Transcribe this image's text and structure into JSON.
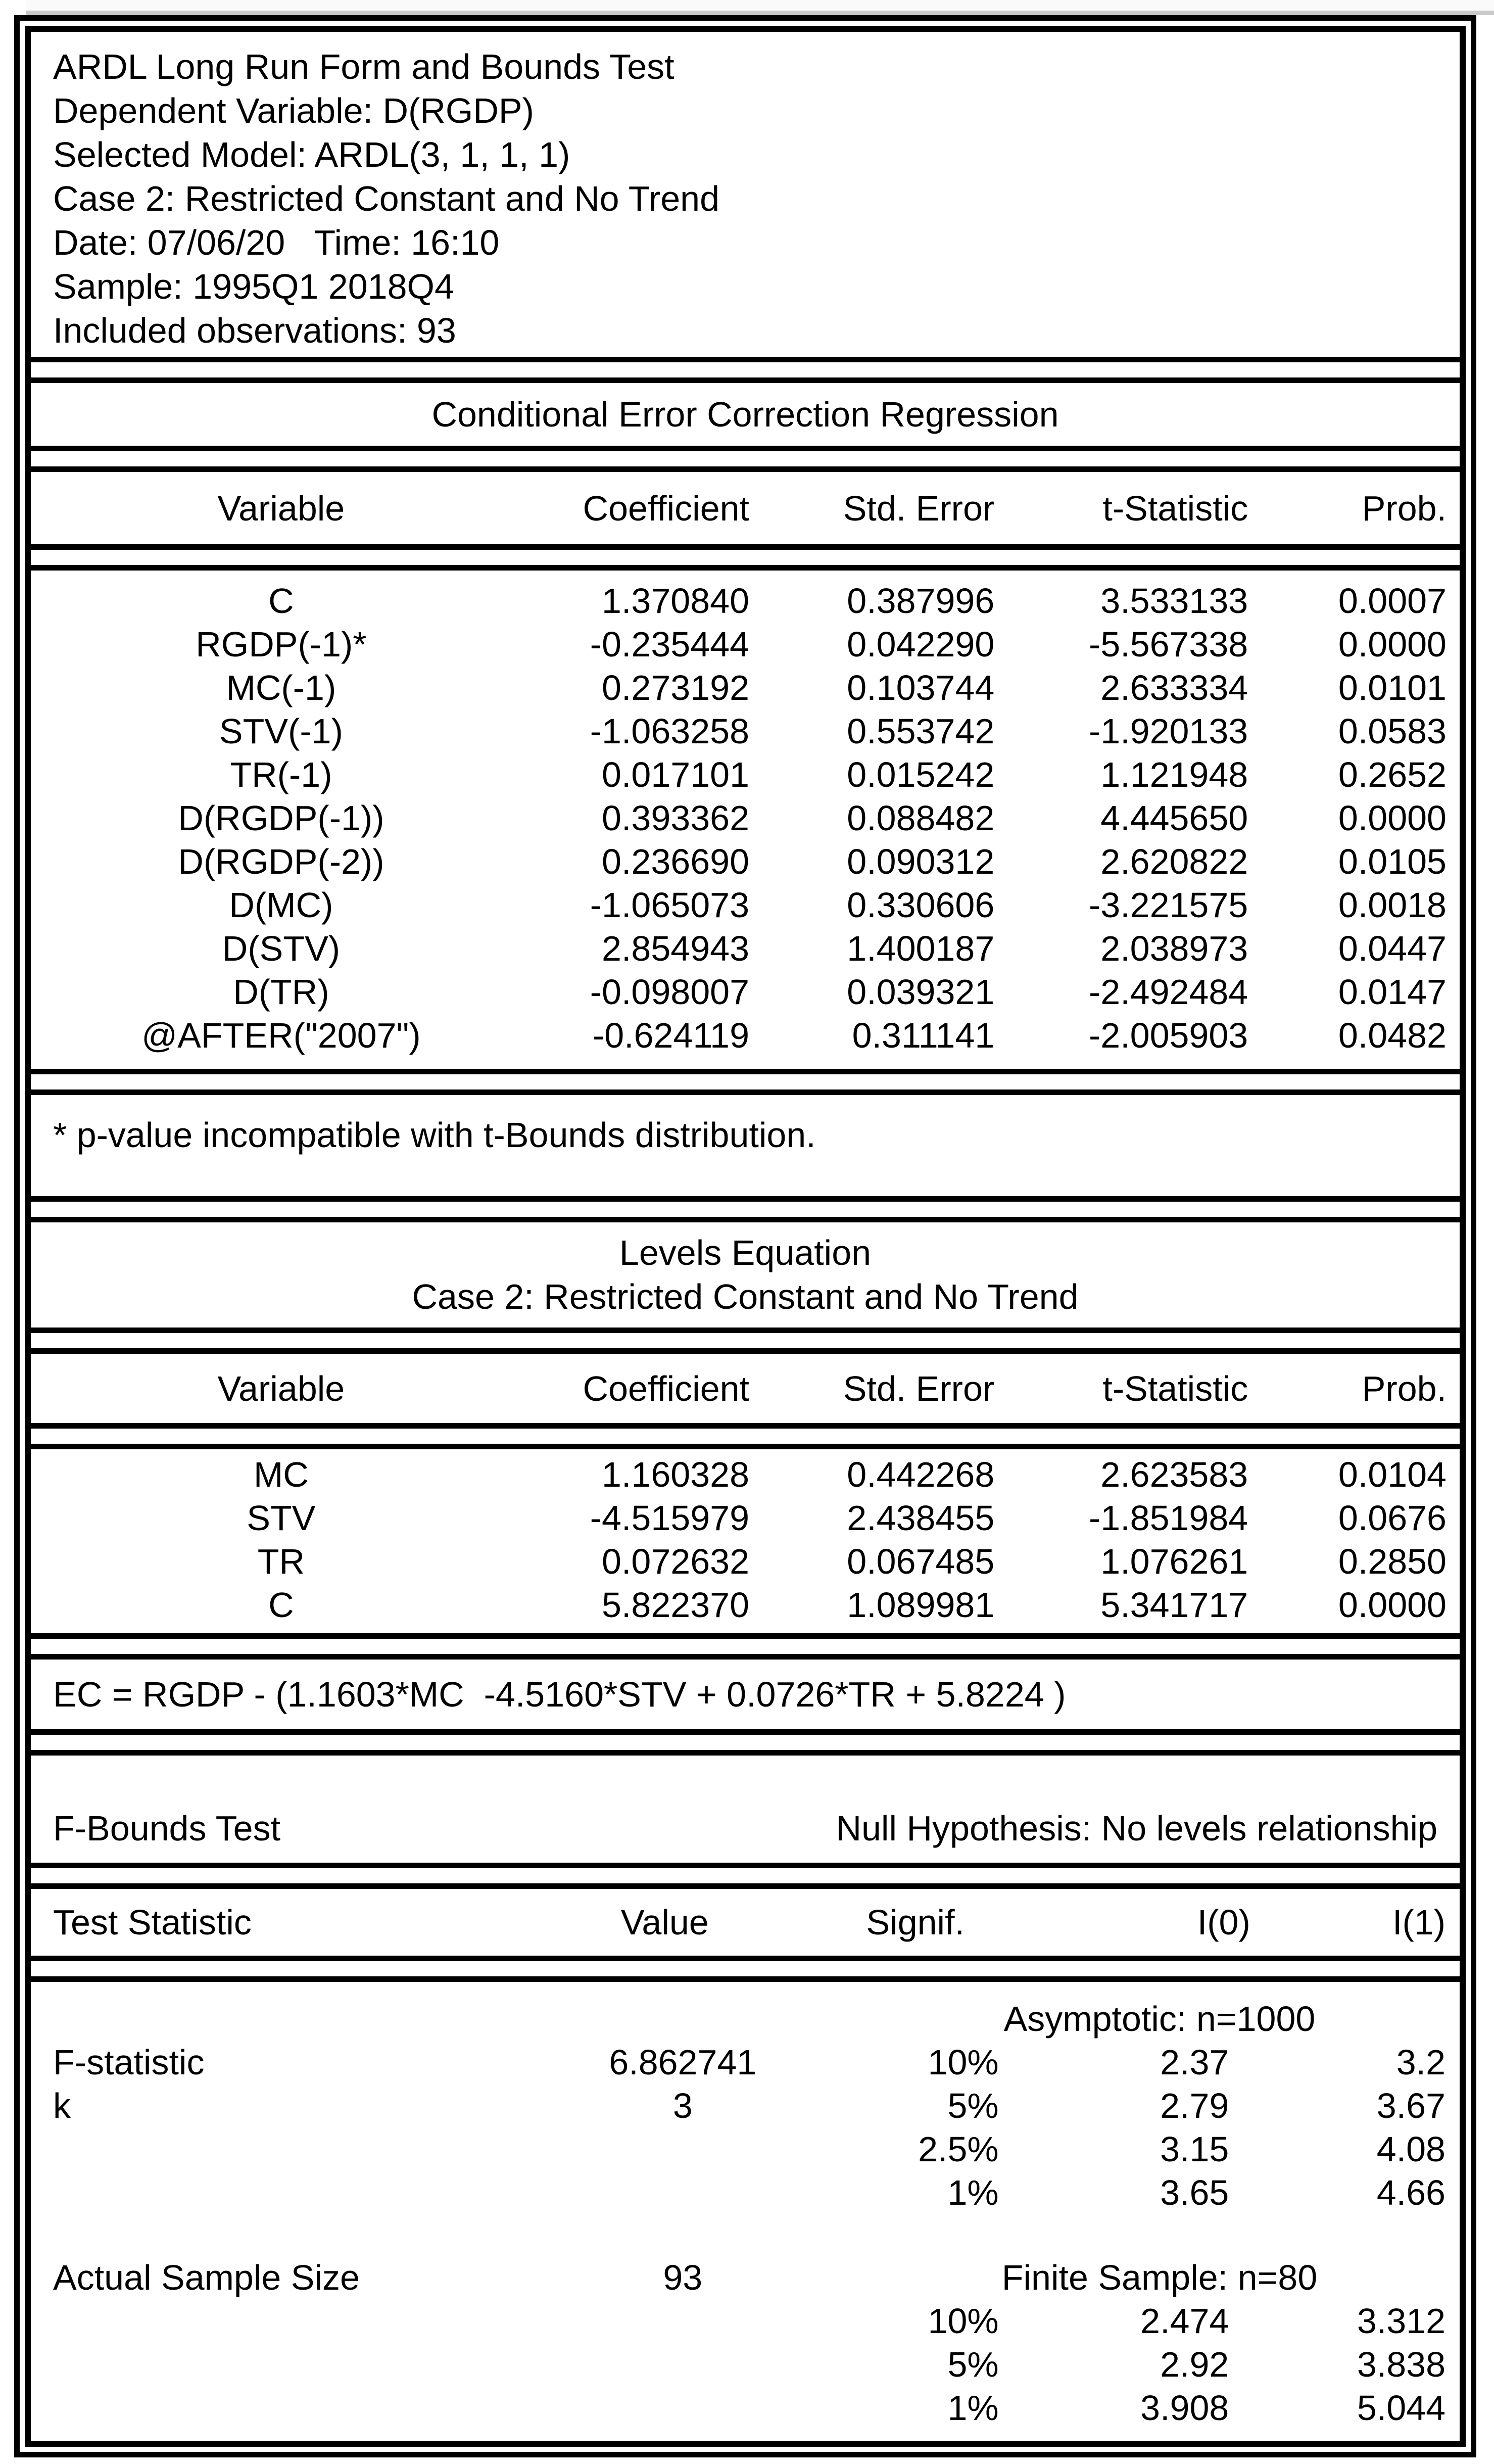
{
  "summary": {
    "lines": [
      "ARDL Long Run Form and Bounds Test",
      "Dependent Variable: D(RGDP)",
      "Selected Model: ARDL(3, 1, 1, 1)",
      "Case 2: Restricted Constant and No Trend",
      "Date: 07/06/20   Time: 16:10",
      "Sample: 1995Q1 2018Q4",
      "Included observations: 93"
    ]
  },
  "cec": {
    "title": "Conditional Error Correction Regression",
    "columns": [
      "Variable",
      "Coefficient",
      "Std. Error",
      "t-Statistic",
      "Prob."
    ],
    "rows": [
      [
        "C",
        "1.370840",
        "0.387996",
        "3.533133",
        "0.0007"
      ],
      [
        "RGDP(-1)*",
        "-0.235444",
        "0.042290",
        "-5.567338",
        "0.0000"
      ],
      [
        "MC(-1)",
        "0.273192",
        "0.103744",
        "2.633334",
        "0.0101"
      ],
      [
        "STV(-1)",
        "-1.063258",
        "0.553742",
        "-1.920133",
        "0.0583"
      ],
      [
        "TR(-1)",
        "0.017101",
        "0.015242",
        "1.121948",
        "0.2652"
      ],
      [
        "D(RGDP(-1))",
        "0.393362",
        "0.088482",
        "4.445650",
        "0.0000"
      ],
      [
        "D(RGDP(-2))",
        "0.236690",
        "0.090312",
        "2.620822",
        "0.0105"
      ],
      [
        "D(MC)",
        "-1.065073",
        "0.330606",
        "-3.221575",
        "0.0018"
      ],
      [
        "D(STV)",
        "2.854943",
        "1.400187",
        "2.038973",
        "0.0447"
      ],
      [
        "D(TR)",
        "-0.098007",
        "0.039321",
        "-2.492484",
        "0.0147"
      ],
      [
        "@AFTER(\"2007\")",
        "-0.624119",
        "0.311141",
        "-2.005903",
        "0.0482"
      ]
    ],
    "footnote": "* p-value incompatible with t-Bounds distribution."
  },
  "levels": {
    "title_line1": "Levels Equation",
    "title_line2": "Case 2: Restricted Constant and No Trend",
    "columns": [
      "Variable",
      "Coefficient",
      "Std. Error",
      "t-Statistic",
      "Prob."
    ],
    "rows": [
      [
        "MC",
        "1.160328",
        "0.442268",
        "2.623583",
        "0.0104"
      ],
      [
        "STV",
        "-4.515979",
        "2.438455",
        "-1.851984",
        "0.0676"
      ],
      [
        "TR",
        "0.072632",
        "0.067485",
        "1.076261",
        "0.2850"
      ],
      [
        "C",
        "5.822370",
        "1.089981",
        "5.341717",
        "0.0000"
      ]
    ],
    "ec_equation": "EC = RGDP - (1.1603*MC  -4.5160*STV + 0.0726*TR + 5.8224 )"
  },
  "fbounds": {
    "title": "F-Bounds Test",
    "null_hypothesis": "Null Hypothesis: No levels relationship",
    "columns": [
      "Test Statistic",
      "Value",
      "Signif.",
      "I(0)",
      "I(1)"
    ],
    "asymptotic_label": "Asymptotic: n=1000",
    "f_statistic_label": "F-statistic",
    "f_statistic_value": "6.862741",
    "k_label": "k",
    "k_value": "3",
    "asymptotic_rows": [
      [
        "10%",
        "2.37",
        "3.2"
      ],
      [
        "5%",
        "2.79",
        "3.67"
      ],
      [
        "2.5%",
        "3.15",
        "4.08"
      ],
      [
        "1%",
        "3.65",
        "4.66"
      ]
    ],
    "sample_size_label": "Actual Sample Size",
    "sample_size_value": "93",
    "finite_label": "Finite Sample: n=80",
    "finite_rows": [
      [
        "10%",
        "2.474",
        "3.312"
      ],
      [
        "5%",
        "2.92",
        "3.838"
      ],
      [
        "1%",
        "3.908",
        "5.044"
      ]
    ]
  }
}
